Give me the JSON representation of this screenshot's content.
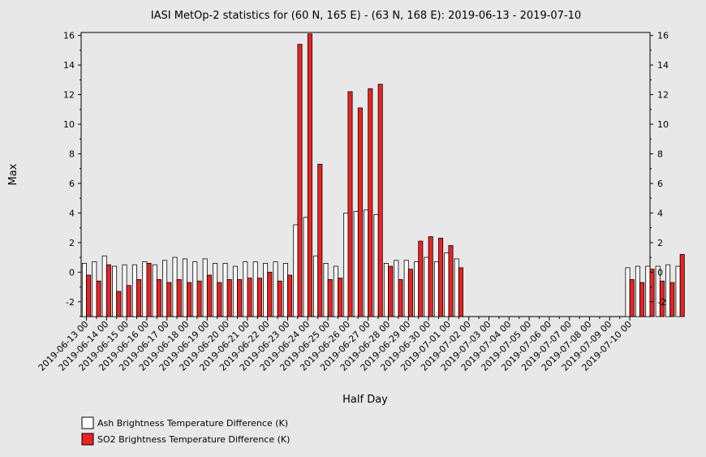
{
  "chart_data": {
    "type": "bar",
    "title": "IASI MetOp-2 statistics for (60 N, 165 E) - (63 N, 168 E): 2019-06-13 - 2019-07-10",
    "xlabel": "Half Day",
    "ylabel": "Max",
    "ylim": [
      -3,
      16.2
    ],
    "yticks": [
      -2,
      0,
      2,
      4,
      6,
      8,
      10,
      12,
      14,
      16
    ],
    "x_tick_labels": [
      "2019-06-13 00",
      "2019-06-14 00",
      "2019-06-15 00",
      "2019-06-16 00",
      "2019-06-17 00",
      "2019-06-18 00",
      "2019-06-19 00",
      "2019-06-20 00",
      "2019-06-21 00",
      "2019-06-22 00",
      "2019-06-23 00",
      "2019-06-24 00",
      "2019-06-25 00",
      "2019-06-26 00",
      "2019-06-27 00",
      "2019-06-28 00",
      "2019-06-29 00",
      "2019-06-30 00",
      "2019-07-01 00",
      "2019-07-02 00",
      "2019-07-03 00",
      "2019-07-04 00",
      "2019-07-05 00",
      "2019-07-06 00",
      "2019-07-07 00",
      "2019-07-08 00",
      "2019-07-09 00",
      "2019-07-10 00"
    ],
    "series": [
      {
        "name": "Ash Brightness Temperature Difference (K)",
        "color": "#ffffff",
        "values": [
          0.6,
          0.7,
          1.1,
          0.4,
          0.5,
          0.5,
          0.7,
          0.5,
          0.8,
          1.0,
          0.9,
          0.7,
          0.9,
          0.6,
          0.6,
          0.4,
          0.7,
          0.7,
          0.6,
          0.7,
          0.6,
          3.2,
          3.7,
          1.1,
          0.6,
          0.4,
          4.0,
          4.1,
          4.2,
          3.9,
          0.6,
          0.8,
          0.8,
          0.7,
          1.0,
          0.7,
          1.3,
          0.9,
          null,
          null,
          null,
          null,
          null,
          null,
          null,
          null,
          null,
          null,
          null,
          null,
          null,
          null,
          null,
          null,
          0.3,
          0.4,
          0.4,
          0.4,
          0.5,
          0.4
        ]
      },
      {
        "name": "SO2 Brightness Temperature Difference (K)",
        "color": "#ee2222",
        "values": [
          -0.2,
          -0.6,
          0.5,
          -1.3,
          -0.9,
          -0.5,
          0.6,
          -0.5,
          -0.7,
          -0.5,
          -0.7,
          -0.6,
          -0.2,
          -0.7,
          -0.5,
          -0.5,
          -0.4,
          -0.4,
          0.0,
          -0.6,
          -0.2,
          15.4,
          16.1,
          7.3,
          -0.5,
          -0.4,
          12.2,
          11.1,
          12.4,
          12.7,
          0.4,
          -0.5,
          0.2,
          2.1,
          2.4,
          2.3,
          1.8,
          0.3,
          null,
          null,
          null,
          null,
          null,
          null,
          null,
          null,
          null,
          null,
          null,
          null,
          null,
          null,
          null,
          null,
          -0.5,
          -0.7,
          0.2,
          -0.6,
          -0.7,
          1.2
        ]
      }
    ],
    "legend_position": "bottom-left"
  }
}
